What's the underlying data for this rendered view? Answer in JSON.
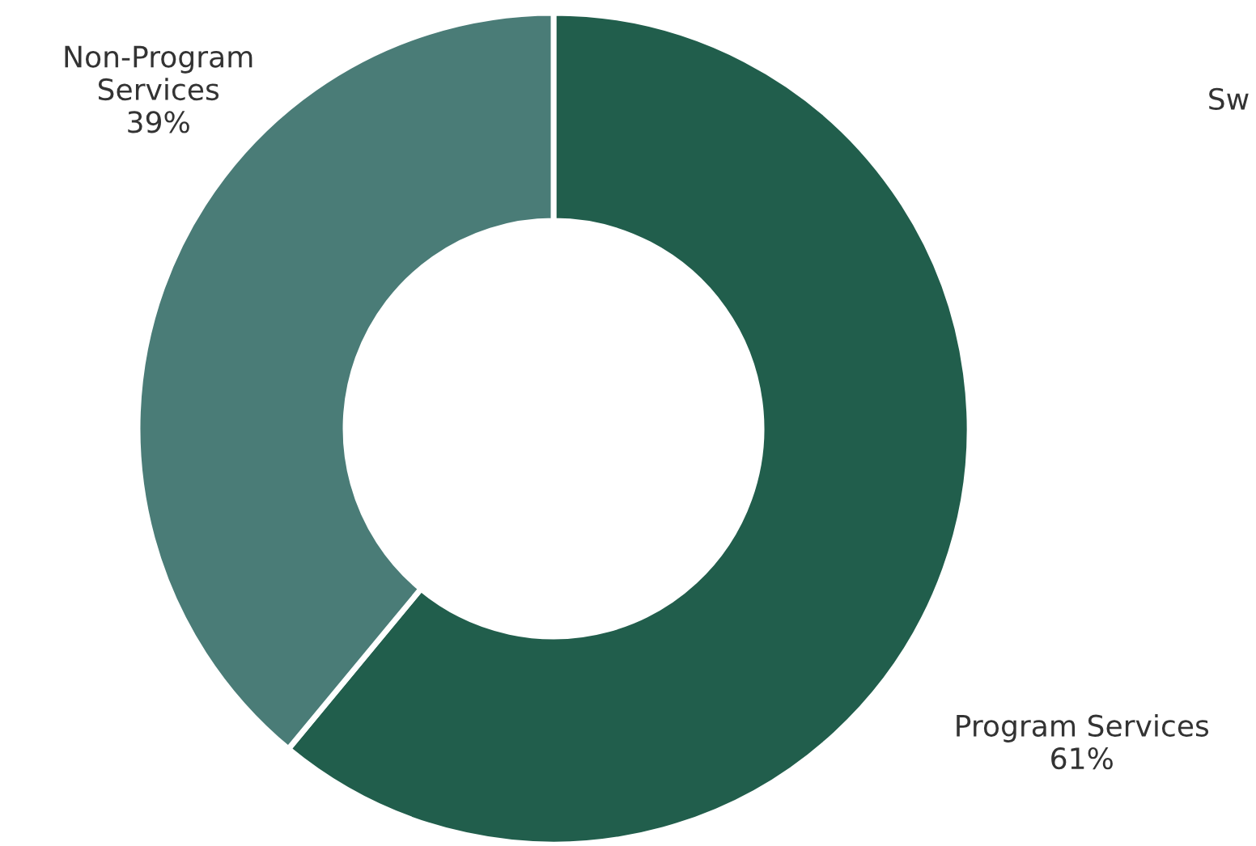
{
  "chart_data": {
    "type": "donut",
    "categories": [
      "Program Services",
      "Non-Program Services"
    ],
    "values": [
      61,
      39
    ],
    "colors": [
      "#215e4c",
      "#4a7c77"
    ],
    "value_labels": [
      "61%",
      "39%"
    ],
    "annotations": [
      "Sw"
    ],
    "legend": false
  }
}
